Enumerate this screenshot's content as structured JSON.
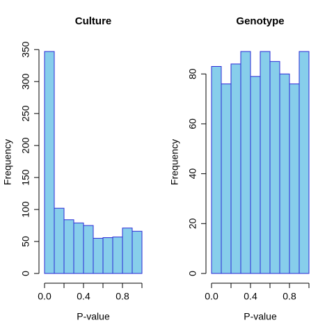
{
  "chart_data": [
    {
      "type": "histogram",
      "title": "Culture",
      "xlabel": "P-value",
      "ylabel": "Frequency",
      "bins": [
        0,
        0.1,
        0.2,
        0.3,
        0.4,
        0.5,
        0.6,
        0.7,
        0.8,
        0.9,
        1.0
      ],
      "values": [
        347,
        102,
        84,
        79,
        75,
        55,
        56,
        57,
        71,
        66
      ],
      "color": "#87ceeb",
      "edge_color": "#2b2bd6",
      "xlim": [
        0,
        1
      ],
      "ylim": [
        0,
        347
      ],
      "xticks": [
        {
          "value": 0,
          "label": "0.0"
        },
        {
          "value": 0.2,
          "label": null
        },
        {
          "value": 0.4,
          "label": "0.4"
        },
        {
          "value": 0.6,
          "label": null
        },
        {
          "value": 0.8,
          "label": "0.8"
        },
        {
          "value": 1.0,
          "label": null
        }
      ],
      "yticks": [
        0,
        50,
        100,
        150,
        200,
        250,
        300,
        350
      ]
    },
    {
      "type": "histogram",
      "title": "Genotype",
      "xlabel": "P-value",
      "ylabel": "Frequency",
      "bins": [
        0,
        0.1,
        0.2,
        0.3,
        0.4,
        0.5,
        0.6,
        0.7,
        0.8,
        0.9,
        1.0
      ],
      "values": [
        83,
        76,
        84,
        89,
        79,
        89,
        85,
        80,
        76,
        89
      ],
      "color": "#87ceeb",
      "edge_color": "#2b2bd6",
      "xlim": [
        0,
        1
      ],
      "ylim": [
        0,
        89
      ],
      "xticks": [
        {
          "value": 0,
          "label": "0.0"
        },
        {
          "value": 0.2,
          "label": null
        },
        {
          "value": 0.4,
          "label": "0.4"
        },
        {
          "value": 0.6,
          "label": null
        },
        {
          "value": 0.8,
          "label": "0.8"
        },
        {
          "value": 1.0,
          "label": null
        }
      ],
      "yticks": [
        0,
        20,
        40,
        60,
        80
      ]
    }
  ]
}
